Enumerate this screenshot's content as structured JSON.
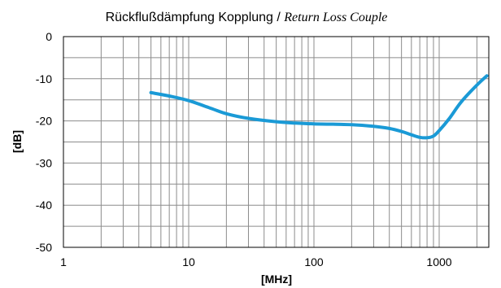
{
  "chart_data": {
    "type": "line",
    "title": "Rückflußdämpfung Kopplung / ",
    "title_italic": "Return Loss Couple",
    "xlabel": "[MHz]",
    "ylabel": "[dB]",
    "x_scale": "log",
    "xlim": [
      1,
      2500
    ],
    "ylim": [
      -50,
      0
    ],
    "x_ticks": [
      1,
      10,
      100,
      1000
    ],
    "x_tick_labels": [
      "1",
      "10",
      "100",
      "1000"
    ],
    "y_ticks": [
      0,
      -10,
      -20,
      -30,
      -40,
      -50
    ],
    "y_tick_labels": [
      "0",
      "-10",
      "-20",
      "-30",
      "-40",
      "-50"
    ],
    "grid": true,
    "series_color": "#1a9ad6",
    "series": [
      {
        "x": [
          5,
          7,
          10,
          15,
          20,
          30,
          50,
          70,
          100,
          150,
          200,
          300,
          400,
          500,
          600,
          700,
          800,
          900,
          1000,
          1200,
          1500,
          2000,
          2400
        ],
        "values": [
          -13.3,
          -14.1,
          -15.2,
          -17.0,
          -18.3,
          -19.4,
          -20.2,
          -20.5,
          -20.7,
          -20.8,
          -20.9,
          -21.3,
          -21.8,
          -22.5,
          -23.3,
          -23.9,
          -24.0,
          -23.6,
          -22.3,
          -19.5,
          -15.5,
          -11.5,
          -9.3
        ]
      }
    ]
  }
}
